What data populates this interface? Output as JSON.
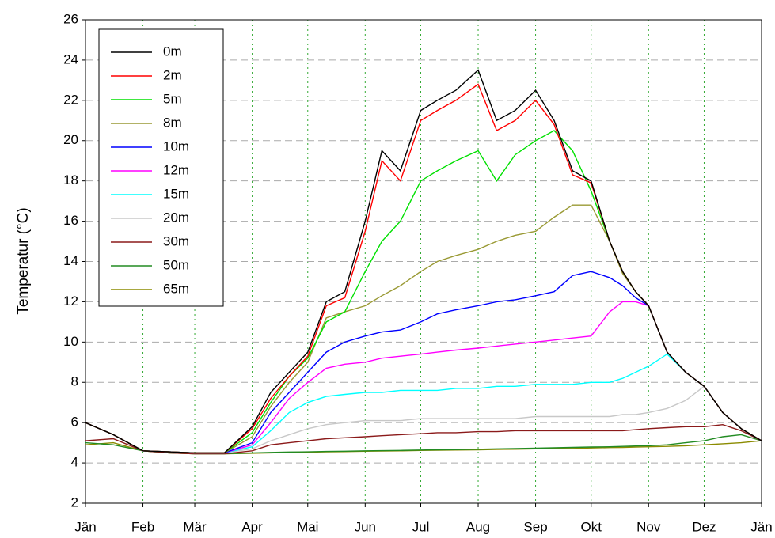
{
  "chart_data": {
    "type": "line",
    "y_label": "Temperatur (°C)",
    "x": [
      0,
      15,
      31,
      45,
      59,
      75,
      90,
      100,
      110,
      120,
      130,
      140,
      151,
      160,
      170,
      181,
      190,
      200,
      212,
      222,
      232,
      243,
      253,
      263,
      273,
      283,
      290,
      297,
      304,
      314,
      324,
      334,
      344,
      354,
      365
    ],
    "xlim": [
      0,
      365
    ],
    "xticks": [
      {
        "value": 0,
        "label": "Jän"
      },
      {
        "value": 31,
        "label": "Feb"
      },
      {
        "value": 59,
        "label": "Mär"
      },
      {
        "value": 90,
        "label": "Apr"
      },
      {
        "value": 120,
        "label": "Mai"
      },
      {
        "value": 151,
        "label": "Jun"
      },
      {
        "value": 181,
        "label": "Jul"
      },
      {
        "value": 212,
        "label": "Aug"
      },
      {
        "value": 243,
        "label": "Sep"
      },
      {
        "value": 273,
        "label": "Okt"
      },
      {
        "value": 304,
        "label": "Nov"
      },
      {
        "value": 334,
        "label": "Dez"
      },
      {
        "value": 365,
        "label": "Jän"
      }
    ],
    "ylim": [
      2,
      26
    ],
    "yticks": [
      2,
      4,
      6,
      8,
      10,
      12,
      14,
      16,
      18,
      20,
      22,
      24,
      26
    ],
    "grid": true,
    "legend": "top-left",
    "series": [
      {
        "name": "0m",
        "color": "#000000",
        "values": [
          6.0,
          5.4,
          4.6,
          4.55,
          4.5,
          4.5,
          5.8,
          7.5,
          8.5,
          9.5,
          12,
          12.5,
          16,
          19.5,
          18.5,
          21.5,
          22,
          22.5,
          23.5,
          21,
          21.5,
          22.5,
          21,
          18.5,
          18,
          15,
          13.5,
          12.5,
          11.8,
          9.5,
          8.5,
          7.8,
          6.5,
          5.7,
          5.1
        ]
      },
      {
        "name": "2m",
        "color": "#ff0000",
        "values": [
          6.0,
          5.4,
          4.6,
          4.55,
          4.5,
          4.5,
          5.7,
          7.2,
          8.3,
          9.3,
          11.8,
          12.2,
          15.5,
          19,
          18,
          21,
          21.5,
          22,
          22.8,
          20.5,
          21,
          22,
          20.8,
          18.3,
          17.9,
          15,
          13.5,
          12.5,
          11.8,
          9.5,
          8.5,
          7.8,
          6.5,
          5.7,
          5.1
        ]
      },
      {
        "name": "5m",
        "color": "#00e000",
        "values": [
          6.0,
          5.4,
          4.6,
          4.55,
          4.5,
          4.5,
          5.5,
          7,
          8.3,
          9.2,
          11,
          11.5,
          13.5,
          15,
          16,
          18,
          18.5,
          19,
          19.5,
          18,
          19.3,
          20,
          20.5,
          19.5,
          17.5,
          15,
          13.5,
          12.5,
          11.8,
          9.5,
          8.5,
          7.8,
          6.5,
          5.7,
          5.1
        ]
      },
      {
        "name": "8m",
        "color": "#999933",
        "values": [
          6.0,
          5.4,
          4.6,
          4.55,
          4.5,
          4.5,
          5.3,
          6.8,
          8,
          9,
          11.2,
          11.5,
          11.8,
          12.3,
          12.8,
          13.5,
          14,
          14.3,
          14.6,
          15,
          15.3,
          15.5,
          16.2,
          16.8,
          16.8,
          15,
          13.4,
          12.5,
          11.8,
          9.5,
          8.5,
          7.8,
          6.5,
          5.7,
          5.1
        ]
      },
      {
        "name": "10m",
        "color": "#0000ff",
        "values": [
          6.0,
          5.4,
          4.6,
          4.55,
          4.5,
          4.5,
          5,
          6.5,
          7.5,
          8.5,
          9.5,
          10,
          10.3,
          10.5,
          10.6,
          11,
          11.4,
          11.6,
          11.8,
          12,
          12.1,
          12.3,
          12.5,
          13.3,
          13.5,
          13.2,
          12.8,
          12.2,
          11.8,
          9.5,
          8.5,
          7.8,
          6.5,
          5.7,
          5.1
        ]
      },
      {
        "name": "12m",
        "color": "#ff00ff",
        "values": [
          6.0,
          5.4,
          4.6,
          4.55,
          4.5,
          4.5,
          4.9,
          6,
          7.2,
          8,
          8.7,
          8.9,
          9,
          9.2,
          9.3,
          9.4,
          9.5,
          9.6,
          9.7,
          9.8,
          9.9,
          10,
          10.1,
          10.2,
          10.3,
          11.5,
          12,
          12,
          11.8,
          9.5,
          8.5,
          7.8,
          6.5,
          5.7,
          5.1
        ]
      },
      {
        "name": "15m",
        "color": "#00ffff",
        "values": [
          6.0,
          5.4,
          4.6,
          4.55,
          4.5,
          4.5,
          4.8,
          5.6,
          6.5,
          7,
          7.3,
          7.4,
          7.5,
          7.5,
          7.6,
          7.6,
          7.6,
          7.7,
          7.7,
          7.8,
          7.8,
          7.9,
          7.9,
          7.9,
          8,
          8,
          8.2,
          8.5,
          8.8,
          9.4,
          8.5,
          7.8,
          6.5,
          5.7,
          5.1
        ]
      },
      {
        "name": "20m",
        "color": "#c8c8c8",
        "values": [
          6.0,
          5.4,
          4.6,
          4.55,
          4.5,
          4.5,
          4.7,
          5.1,
          5.4,
          5.7,
          5.9,
          6,
          6.1,
          6.1,
          6.1,
          6.2,
          6.2,
          6.2,
          6.2,
          6.2,
          6.2,
          6.3,
          6.3,
          6.3,
          6.3,
          6.3,
          6.4,
          6.4,
          6.5,
          6.7,
          7.1,
          7.8,
          6.5,
          5.7,
          5.1
        ]
      },
      {
        "name": "30m",
        "color": "#8b1a1a",
        "values": [
          5.1,
          5.2,
          4.6,
          4.5,
          4.45,
          4.45,
          4.6,
          4.9,
          5,
          5.1,
          5.2,
          5.25,
          5.3,
          5.35,
          5.4,
          5.45,
          5.5,
          5.5,
          5.55,
          5.55,
          5.6,
          5.6,
          5.6,
          5.6,
          5.6,
          5.6,
          5.6,
          5.65,
          5.7,
          5.75,
          5.8,
          5.8,
          5.9,
          5.6,
          5.1
        ]
      },
      {
        "name": "50m",
        "color": "#228b22",
        "values": [
          5,
          4.9,
          4.6,
          4.5,
          4.45,
          4.45,
          4.5,
          4.52,
          4.54,
          4.55,
          4.57,
          4.58,
          4.6,
          4.61,
          4.62,
          4.64,
          4.65,
          4.66,
          4.68,
          4.7,
          4.71,
          4.73,
          4.75,
          4.77,
          4.79,
          4.8,
          4.82,
          4.84,
          4.85,
          4.9,
          5,
          5.1,
          5.3,
          5.4,
          5.1
        ]
      },
      {
        "name": "65m",
        "color": "#8b8b00",
        "values": [
          4.9,
          5,
          4.6,
          4.5,
          4.45,
          4.45,
          4.48,
          4.5,
          4.52,
          4.53,
          4.55,
          4.56,
          4.58,
          4.59,
          4.6,
          4.62,
          4.63,
          4.64,
          4.65,
          4.67,
          4.68,
          4.7,
          4.71,
          4.72,
          4.74,
          4.76,
          4.77,
          4.79,
          4.8,
          4.82,
          4.85,
          4.9,
          4.95,
          5,
          5.1
        ]
      }
    ]
  }
}
